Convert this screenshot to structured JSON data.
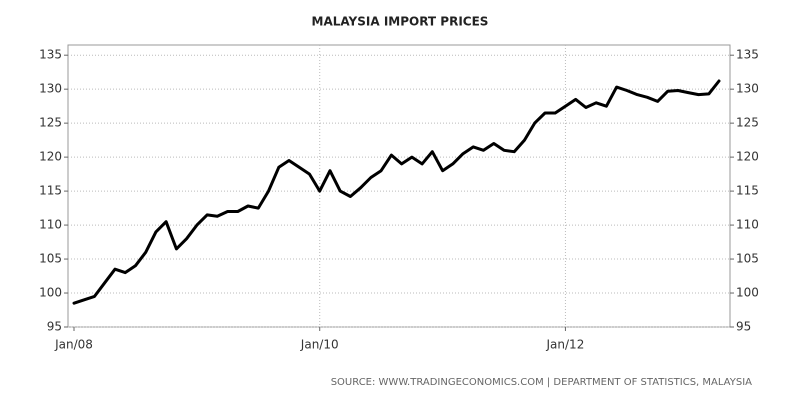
{
  "chart_data": {
    "type": "line",
    "title": "MALAYSIA IMPORT PRICES",
    "source": "SOURCE: WWW.TRADINGECONOMICS.COM | DEPARTMENT OF STATISTICS, MALAYSIA",
    "categories": [
      "Jan/08",
      null,
      null,
      null,
      null,
      null,
      null,
      null,
      null,
      null,
      null,
      null,
      null,
      null,
      null,
      null,
      null,
      null,
      null,
      null,
      null,
      null,
      null,
      null,
      "Jan/10",
      null,
      null,
      null,
      null,
      null,
      null,
      null,
      null,
      null,
      null,
      null,
      null,
      null,
      null,
      null,
      null,
      null,
      null,
      null,
      null,
      null,
      null,
      null,
      "Jan/12",
      null,
      null,
      null,
      null,
      null,
      null,
      null,
      null,
      null,
      null,
      null,
      null,
      null,
      null,
      null
    ],
    "series": [
      {
        "name": "Import Prices",
        "color": "#000000",
        "values": [
          98.5,
          99.0,
          99.5,
          101.5,
          103.5,
          103.0,
          104.0,
          106.0,
          109.0,
          110.5,
          106.5,
          108.0,
          110.0,
          111.5,
          111.3,
          112.0,
          112.0,
          112.8,
          112.5,
          115.0,
          118.5,
          119.5,
          118.5,
          117.5,
          115.0,
          118.0,
          115.0,
          114.2,
          115.5,
          117.0,
          118.0,
          120.3,
          119.0,
          120.0,
          119.0,
          120.8,
          118.0,
          119.0,
          120.5,
          121.5,
          121.0,
          122.0,
          121.0,
          120.8,
          122.5,
          125.0,
          126.5,
          126.5,
          127.5,
          128.5,
          127.3,
          128.0,
          127.5,
          130.3,
          129.8,
          129.2,
          128.8,
          128.2,
          129.7,
          129.8,
          129.5,
          129.2,
          129.3,
          131.2
        ]
      }
    ],
    "ylim": [
      95,
      136.5
    ],
    "yticks": [
      95,
      100,
      105,
      110,
      115,
      120,
      125,
      130,
      135
    ],
    "grid": true
  }
}
